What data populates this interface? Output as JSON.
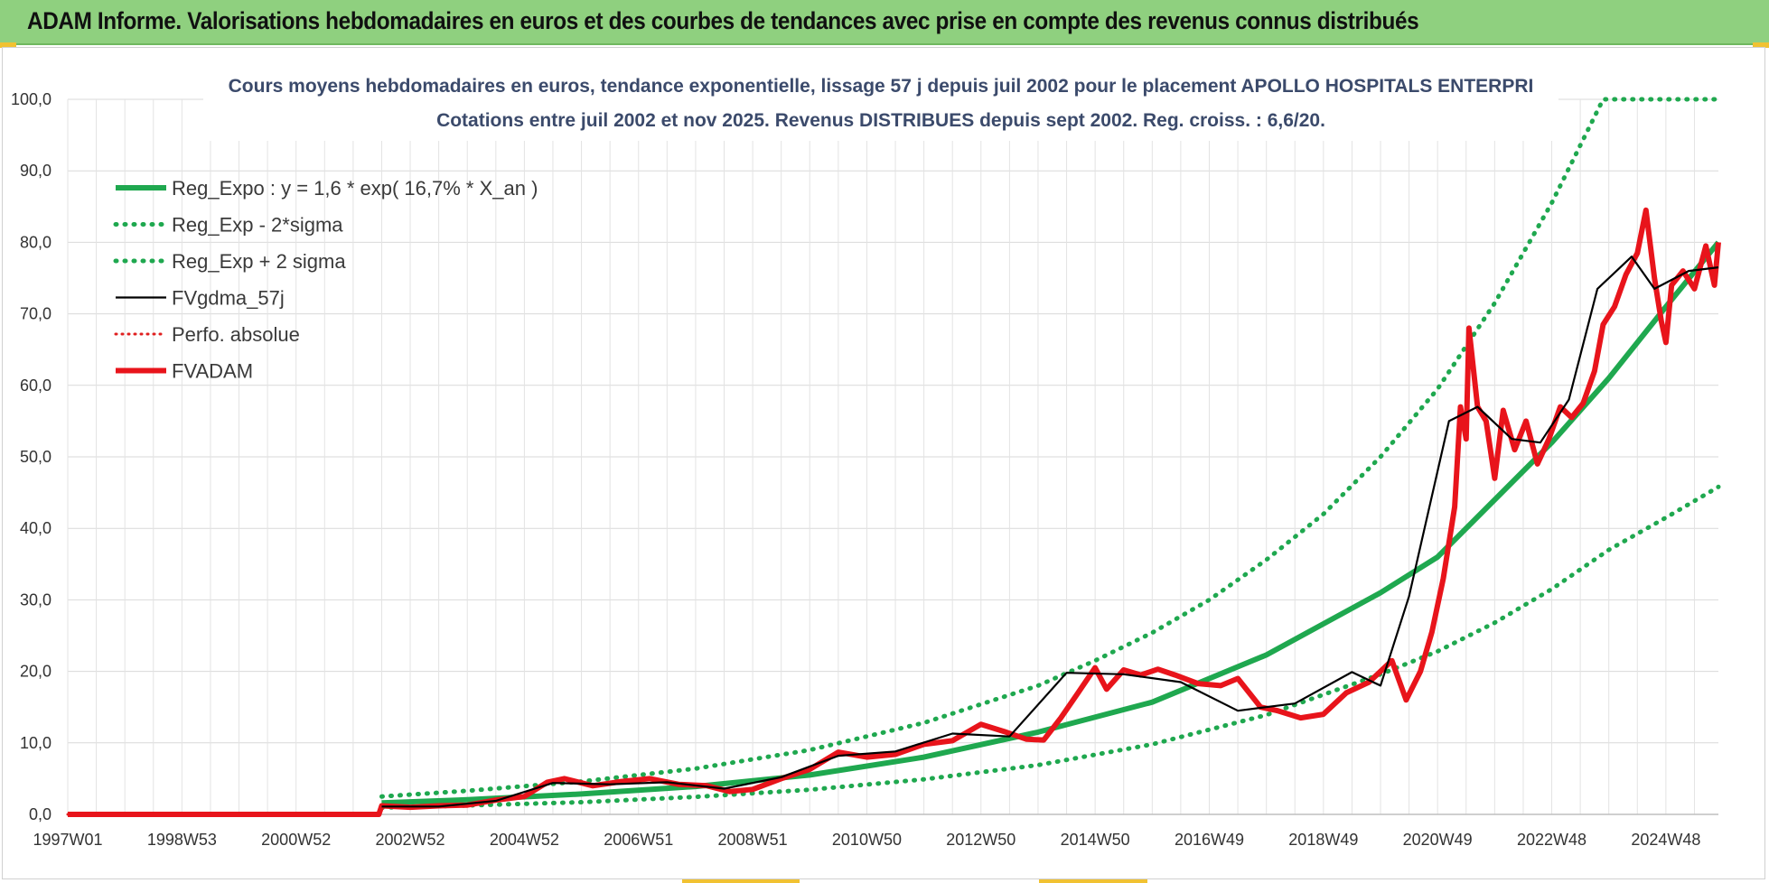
{
  "banner": {
    "title": "ADAM Informe. Valorisations hebdomadaires en euros et des courbes de tendances avec prise en compte des revenus connus distribués",
    "color": "#8fd07f"
  },
  "chart_data": {
    "type": "line",
    "title": "Cours moyens hebdomadaires en euros, tendance exponentielle, lissage 57 j depuis juil 2002 pour le placement APOLLO HOSPITALS ENTERPRI",
    "subtitle": "Cotations entre juil 2002 et nov 2025. Revenus DISTRIBUES depuis sept 2002. Reg. croiss. : 6,6/20.",
    "xlabel": "",
    "ylabel": "",
    "x_range": [
      "1997W01",
      "2025W47"
    ],
    "ylim": [
      0,
      100
    ],
    "y_ticks": [
      "0,0",
      "10,0",
      "20,0",
      "30,0",
      "40,0",
      "50,0",
      "60,0",
      "70,0",
      "80,0",
      "90,0",
      "100,0"
    ],
    "x_ticks": [
      "1997W01",
      "1998W53",
      "2000W52",
      "2002W52",
      "2004W52",
      "2006W51",
      "2008W51",
      "2010W50",
      "2012W50",
      "2014W50",
      "2016W49",
      "2018W49",
      "2020W49",
      "2022W48",
      "2024W48"
    ],
    "x_tick_years": [
      1997.0,
      1999.0,
      2001.0,
      2003.0,
      2005.0,
      2007.0,
      2009.0,
      2011.0,
      2013.0,
      2015.0,
      2017.0,
      2019.0,
      2021.0,
      2023.0,
      2025.0
    ],
    "x_end_year": 2025.92,
    "grid": true,
    "legend_position": "top-left",
    "series": [
      {
        "name": "Reg_Expo : y = 1,6 * exp( 16,7% *  X_an )",
        "color": "#1fa84f",
        "style": "solid-thick",
        "points": [
          [
            2002.5,
            1.6
          ],
          [
            2004,
            2.05
          ],
          [
            2006,
            2.85
          ],
          [
            2008,
            3.9
          ],
          [
            2010,
            5.5
          ],
          [
            2012,
            8.0
          ],
          [
            2014,
            11.5
          ],
          [
            2016,
            15.7
          ],
          [
            2018,
            22.3
          ],
          [
            2020,
            31.0
          ],
          [
            2021,
            36.0
          ],
          [
            2022,
            44.0
          ],
          [
            2023,
            52.0
          ],
          [
            2024,
            61.0
          ],
          [
            2025,
            71.0
          ],
          [
            2025.92,
            80.0
          ]
        ]
      },
      {
        "name": "Reg_Exp - 2*sigma",
        "color": "#1fa84f",
        "style": "dotted",
        "points": [
          [
            2002.5,
            0.95
          ],
          [
            2004,
            1.25
          ],
          [
            2006,
            1.7
          ],
          [
            2008,
            2.45
          ],
          [
            2010,
            3.45
          ],
          [
            2012,
            4.9
          ],
          [
            2014,
            6.9
          ],
          [
            2016,
            9.8
          ],
          [
            2018,
            13.9
          ],
          [
            2020,
            19.6
          ],
          [
            2021,
            22.8
          ],
          [
            2022,
            26.8
          ],
          [
            2023,
            31.5
          ],
          [
            2024,
            37.0
          ],
          [
            2025,
            41.5
          ],
          [
            2025.92,
            45.8
          ]
        ]
      },
      {
        "name": "Reg_Exp + 2 sigma",
        "color": "#1fa84f",
        "style": "dotted",
        "points": [
          [
            2002.5,
            2.5
          ],
          [
            2004,
            3.3
          ],
          [
            2006,
            4.6
          ],
          [
            2008,
            6.4
          ],
          [
            2010,
            9.0
          ],
          [
            2012,
            12.8
          ],
          [
            2014,
            18.0
          ],
          [
            2015,
            21.5
          ],
          [
            2016,
            25.4
          ],
          [
            2017,
            30.0
          ],
          [
            2018,
            35.6
          ],
          [
            2019,
            42.0
          ],
          [
            2020,
            50.0
          ],
          [
            2021,
            59.5
          ],
          [
            2022,
            71.5
          ],
          [
            2023,
            85.5
          ],
          [
            2023.9,
            100.0
          ],
          [
            2025.92,
            100.0
          ]
        ]
      },
      {
        "name": "FVgdma_57j",
        "color": "#000000",
        "style": "solid-thin",
        "points": [
          [
            2002.5,
            1.1
          ],
          [
            2003.5,
            1.1
          ],
          [
            2004.5,
            1.9
          ],
          [
            2005.5,
            4.4
          ],
          [
            2006.5,
            4.2
          ],
          [
            2007.5,
            4.5
          ],
          [
            2008.5,
            3.6
          ],
          [
            2009.5,
            5.2
          ],
          [
            2010.5,
            8.2
          ],
          [
            2011.5,
            8.8
          ],
          [
            2012.5,
            11.3
          ],
          [
            2013.5,
            10.9
          ],
          [
            2014.5,
            19.8
          ],
          [
            2015.5,
            19.6
          ],
          [
            2016.5,
            18.5
          ],
          [
            2017.5,
            14.5
          ],
          [
            2018.5,
            15.5
          ],
          [
            2019.5,
            19.9
          ],
          [
            2020.0,
            18.0
          ],
          [
            2020.5,
            30.5
          ],
          [
            2021.2,
            55.0
          ],
          [
            2021.7,
            57.0
          ],
          [
            2022.3,
            52.5
          ],
          [
            2022.8,
            52.0
          ],
          [
            2023.3,
            58.0
          ],
          [
            2023.8,
            73.5
          ],
          [
            2024.4,
            78.0
          ],
          [
            2024.8,
            73.5
          ],
          [
            2025.4,
            76.0
          ],
          [
            2025.92,
            76.5
          ]
        ]
      },
      {
        "name": "Perfo. absolue",
        "color": "#e02020",
        "style": "dotted-thin",
        "points": [
          [
            1997.0,
            0.0
          ],
          [
            2002.5,
            0.0
          ]
        ]
      },
      {
        "name": "FVADAM",
        "color": "#e8141b",
        "style": "solid-thick",
        "points": [
          [
            1997.0,
            0.0
          ],
          [
            2002.45,
            0.0
          ],
          [
            2002.5,
            1.2
          ],
          [
            2003.0,
            1.0
          ],
          [
            2003.5,
            1.2
          ],
          [
            2004.0,
            1.3
          ],
          [
            2004.5,
            2.0
          ],
          [
            2005.0,
            2.5
          ],
          [
            2005.4,
            4.5
          ],
          [
            2005.7,
            5.0
          ],
          [
            2006.2,
            4.0
          ],
          [
            2006.7,
            4.6
          ],
          [
            2007.2,
            5.0
          ],
          [
            2007.7,
            4.2
          ],
          [
            2008.2,
            4.0
          ],
          [
            2008.6,
            3.2
          ],
          [
            2009.0,
            3.5
          ],
          [
            2009.5,
            5.0
          ],
          [
            2010.0,
            6.3
          ],
          [
            2010.5,
            8.7
          ],
          [
            2011.0,
            8.0
          ],
          [
            2011.5,
            8.4
          ],
          [
            2012.0,
            9.8
          ],
          [
            2012.5,
            10.3
          ],
          [
            2013.0,
            12.6
          ],
          [
            2013.4,
            11.6
          ],
          [
            2013.8,
            10.5
          ],
          [
            2014.1,
            10.4
          ],
          [
            2014.4,
            13.5
          ],
          [
            2014.7,
            17.0
          ],
          [
            2015.0,
            20.5
          ],
          [
            2015.2,
            17.5
          ],
          [
            2015.5,
            20.2
          ],
          [
            2015.8,
            19.5
          ],
          [
            2016.1,
            20.3
          ],
          [
            2016.4,
            19.5
          ],
          [
            2016.8,
            18.3
          ],
          [
            2017.2,
            18.0
          ],
          [
            2017.5,
            19.0
          ],
          [
            2017.9,
            15.0
          ],
          [
            2018.2,
            14.5
          ],
          [
            2018.6,
            13.5
          ],
          [
            2019.0,
            14.0
          ],
          [
            2019.4,
            17.0
          ],
          [
            2019.8,
            18.5
          ],
          [
            2020.2,
            21.5
          ],
          [
            2020.45,
            16.0
          ],
          [
            2020.7,
            20.0
          ],
          [
            2020.9,
            25.5
          ],
          [
            2021.1,
            33.0
          ],
          [
            2021.3,
            43.0
          ],
          [
            2021.4,
            57.0
          ],
          [
            2021.5,
            52.5
          ],
          [
            2021.55,
            68.0
          ],
          [
            2021.7,
            57.0
          ],
          [
            2021.85,
            55.0
          ],
          [
            2022.0,
            47.0
          ],
          [
            2022.15,
            56.5
          ],
          [
            2022.35,
            51.0
          ],
          [
            2022.55,
            55.0
          ],
          [
            2022.75,
            49.0
          ],
          [
            2022.95,
            52.5
          ],
          [
            2023.15,
            57.0
          ],
          [
            2023.35,
            55.5
          ],
          [
            2023.55,
            57.5
          ],
          [
            2023.75,
            62.0
          ],
          [
            2023.9,
            68.5
          ],
          [
            2024.1,
            71.0
          ],
          [
            2024.3,
            75.5
          ],
          [
            2024.5,
            78.5
          ],
          [
            2024.65,
            84.5
          ],
          [
            2024.8,
            75.0
          ],
          [
            2024.92,
            69.0
          ],
          [
            2025.0,
            66.0
          ],
          [
            2025.1,
            74.0
          ],
          [
            2025.3,
            76.0
          ],
          [
            2025.5,
            73.5
          ],
          [
            2025.7,
            79.5
          ],
          [
            2025.85,
            74.0
          ],
          [
            2025.92,
            80.0
          ]
        ]
      }
    ]
  }
}
